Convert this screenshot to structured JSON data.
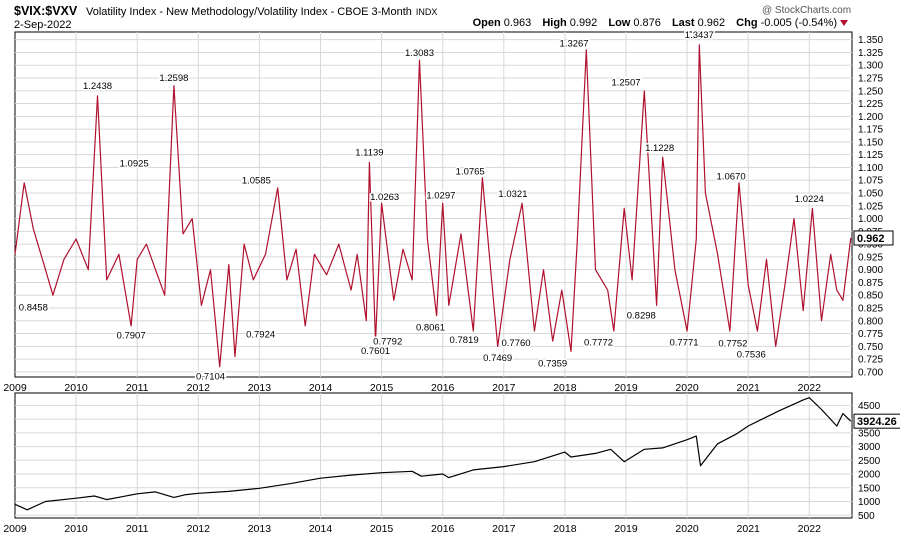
{
  "header": {
    "symbol": "$VIX:$VXV",
    "description": "Volatility Index - New Methodology/Volatility Index - CBOE 3-Month",
    "exchange": "INDX",
    "date": "2-Sep-2022",
    "copyright": "@ StockCharts.com",
    "open_label": "Open",
    "open": "0.963",
    "high_label": "High",
    "high": "0.992",
    "low_label": "Low",
    "low": "0.876",
    "last_label": "Last",
    "last": "0.962",
    "chg_label": "Chg",
    "chg": "-0.005 (-0.54%)"
  },
  "colors": {
    "ratio_line": "#b0112e",
    "spx_line": "#000000",
    "grid": "#d8d8d8",
    "last_box_red": "#b0112e"
  },
  "chart_data": [
    {
      "type": "line",
      "name": "$VIX:$VXV",
      "ylim": [
        0.69,
        1.365
      ],
      "yticks": [
        "0.700",
        "0.725",
        "0.750",
        "0.775",
        "0.800",
        "0.825",
        "0.850",
        "0.875",
        "0.900",
        "0.925",
        "0.950",
        "0.975",
        "1.000",
        "1.025",
        "1.050",
        "1.075",
        "1.100",
        "1.125",
        "1.150",
        "1.175",
        "1.200",
        "1.225",
        "1.250",
        "1.275",
        "1.300",
        "1.325",
        "1.350"
      ],
      "xticks": [
        "2009",
        "2010",
        "2011",
        "2012",
        "2013",
        "2014",
        "2015",
        "2016",
        "2017",
        "2018",
        "2019",
        "2020",
        "2021",
        "2022"
      ],
      "last_value": "0.962",
      "series_x": [
        2009.0,
        2009.15,
        2009.3,
        2009.5,
        2009.62,
        2009.8,
        2010.0,
        2010.2,
        2010.35,
        2010.5,
        2010.7,
        2010.9,
        2011.0,
        2011.15,
        2011.3,
        2011.45,
        2011.6,
        2011.75,
        2011.9,
        2012.05,
        2012.2,
        2012.35,
        2012.5,
        2012.6,
        2012.75,
        2012.9,
        2013.1,
        2013.3,
        2013.45,
        2013.6,
        2013.75,
        2013.9,
        2014.1,
        2014.3,
        2014.5,
        2014.6,
        2014.75,
        2014.8,
        2014.9,
        2015.0,
        2015.2,
        2015.35,
        2015.5,
        2015.62,
        2015.75,
        2015.9,
        2016.0,
        2016.1,
        2016.3,
        2016.5,
        2016.65,
        2016.8,
        2016.9,
        2017.1,
        2017.3,
        2017.5,
        2017.65,
        2017.8,
        2017.95,
        2018.1,
        2018.2,
        2018.35,
        2018.5,
        2018.7,
        2018.8,
        2018.97,
        2019.1,
        2019.3,
        2019.5,
        2019.6,
        2019.8,
        2020.0,
        2020.15,
        2020.2,
        2020.3,
        2020.5,
        2020.7,
        2020.85,
        2021.0,
        2021.15,
        2021.3,
        2021.45,
        2021.6,
        2021.75,
        2021.9,
        2022.05,
        2022.2,
        2022.35,
        2022.45,
        2022.55,
        2022.68
      ],
      "series_y": [
        0.93,
        1.07,
        0.98,
        0.9,
        0.85,
        0.92,
        0.96,
        0.9,
        1.24,
        0.88,
        0.93,
        0.79,
        0.92,
        0.95,
        0.9,
        0.85,
        1.26,
        0.97,
        1.0,
        0.83,
        0.9,
        0.71,
        0.91,
        0.73,
        0.95,
        0.88,
        0.93,
        1.06,
        0.88,
        0.94,
        0.79,
        0.93,
        0.89,
        0.95,
        0.86,
        0.93,
        0.8,
        1.11,
        0.76,
        1.03,
        0.84,
        0.94,
        0.88,
        1.31,
        0.96,
        0.81,
        1.03,
        0.83,
        0.97,
        0.78,
        1.08,
        0.88,
        0.75,
        0.92,
        1.03,
        0.78,
        0.9,
        0.76,
        0.86,
        0.74,
        0.95,
        1.33,
        0.9,
        0.86,
        0.78,
        1.02,
        0.88,
        1.25,
        0.83,
        1.12,
        0.9,
        0.78,
        0.96,
        1.34,
        1.05,
        0.93,
        0.78,
        1.07,
        0.87,
        0.78,
        0.92,
        0.75,
        0.87,
        1.0,
        0.82,
        1.02,
        0.8,
        0.93,
        0.86,
        0.84,
        0.962
      ],
      "annotations": [
        {
          "x": 2009.3,
          "y": 0.8458,
          "label": "0.8458"
        },
        {
          "x": 2010.35,
          "y": 1.2438,
          "label": "1.2438"
        },
        {
          "x": 2010.9,
          "y": 0.7907,
          "label": "0.7907"
        },
        {
          "x": 2010.95,
          "y": 1.0925,
          "label": "1.0925"
        },
        {
          "x": 2011.6,
          "y": 1.2598,
          "label": "1.2598"
        },
        {
          "x": 2012.2,
          "y": 0.7104,
          "label": "0.7104"
        },
        {
          "x": 2012.95,
          "y": 1.0585,
          "label": "1.0585"
        },
        {
          "x": 2013.02,
          "y": 0.7924,
          "label": "0.7924"
        },
        {
          "x": 2014.8,
          "y": 1.1139,
          "label": "1.1139"
        },
        {
          "x": 2014.9,
          "y": 0.7601,
          "label": "0.7601"
        },
        {
          "x": 2015.05,
          "y": 1.0263,
          "label": "1.0263"
        },
        {
          "x": 2015.1,
          "y": 0.7792,
          "label": "0.7792"
        },
        {
          "x": 2015.62,
          "y": 1.3083,
          "label": "1.3083"
        },
        {
          "x": 2015.8,
          "y": 0.8061,
          "label": "0.8061"
        },
        {
          "x": 2015.97,
          "y": 1.0297,
          "label": "1.0297"
        },
        {
          "x": 2016.35,
          "y": 0.7819,
          "label": "0.7819"
        },
        {
          "x": 2016.45,
          "y": 1.0765,
          "label": "1.0765"
        },
        {
          "x": 2016.9,
          "y": 0.7469,
          "label": "0.7469"
        },
        {
          "x": 2017.15,
          "y": 1.0321,
          "label": "1.0321"
        },
        {
          "x": 2017.2,
          "y": 0.776,
          "label": "0.7760"
        },
        {
          "x": 2017.8,
          "y": 0.7359,
          "label": "0.7359"
        },
        {
          "x": 2018.15,
          "y": 1.3267,
          "label": "1.3267"
        },
        {
          "x": 2018.55,
          "y": 0.7772,
          "label": "0.7772"
        },
        {
          "x": 2019.0,
          "y": 1.2507,
          "label": "1.2507"
        },
        {
          "x": 2019.25,
          "y": 0.8298,
          "label": "0.8298"
        },
        {
          "x": 2019.55,
          "y": 1.1228,
          "label": "1.1228"
        },
        {
          "x": 2019.95,
          "y": 0.7771,
          "label": "0.7771"
        },
        {
          "x": 2020.2,
          "y": 1.3437,
          "label": "1.3437"
        },
        {
          "x": 2020.72,
          "y": 1.067,
          "label": "1.0670"
        },
        {
          "x": 2020.75,
          "y": 0.7752,
          "label": "0.7752"
        },
        {
          "x": 2021.05,
          "y": 0.7536,
          "label": "0.7536"
        },
        {
          "x": 2022.0,
          "y": 1.0224,
          "label": "1.0224"
        }
      ]
    },
    {
      "type": "line",
      "name": "$SPX",
      "ylim": [
        400,
        4950
      ],
      "yticks": [
        "500",
        "1000",
        "1500",
        "2000",
        "2500",
        "3000",
        "3500",
        "4000",
        "4500"
      ],
      "xticks": [
        "2009",
        "2010",
        "2011",
        "2012",
        "2013",
        "2014",
        "2015",
        "2016",
        "2017",
        "2018",
        "2019",
        "2020",
        "2021",
        "2022"
      ],
      "last_value": "3924.26",
      "series_x": [
        2009.0,
        2009.2,
        2009.5,
        2010.0,
        2010.3,
        2010.5,
        2011.0,
        2011.3,
        2011.6,
        2011.8,
        2012.0,
        2012.5,
        2013.0,
        2013.5,
        2014.0,
        2014.5,
        2015.0,
        2015.5,
        2015.65,
        2016.0,
        2016.1,
        2016.5,
        2017.0,
        2017.5,
        2018.0,
        2018.1,
        2018.5,
        2018.75,
        2018.97,
        2019.3,
        2019.6,
        2020.0,
        2020.15,
        2020.22,
        2020.5,
        2020.8,
        2021.0,
        2021.5,
        2021.9,
        2022.0,
        2022.2,
        2022.45,
        2022.55,
        2022.68
      ],
      "series_y": [
        900,
        700,
        1000,
        1120,
        1200,
        1070,
        1280,
        1350,
        1150,
        1250,
        1300,
        1370,
        1480,
        1650,
        1850,
        1960,
        2050,
        2100,
        1920,
        2000,
        1870,
        2150,
        2270,
        2450,
        2800,
        2620,
        2750,
        2900,
        2450,
        2900,
        2950,
        3250,
        3380,
        2300,
        3100,
        3450,
        3750,
        4300,
        4700,
        4780,
        4350,
        3750,
        4200,
        3924
      ]
    }
  ]
}
